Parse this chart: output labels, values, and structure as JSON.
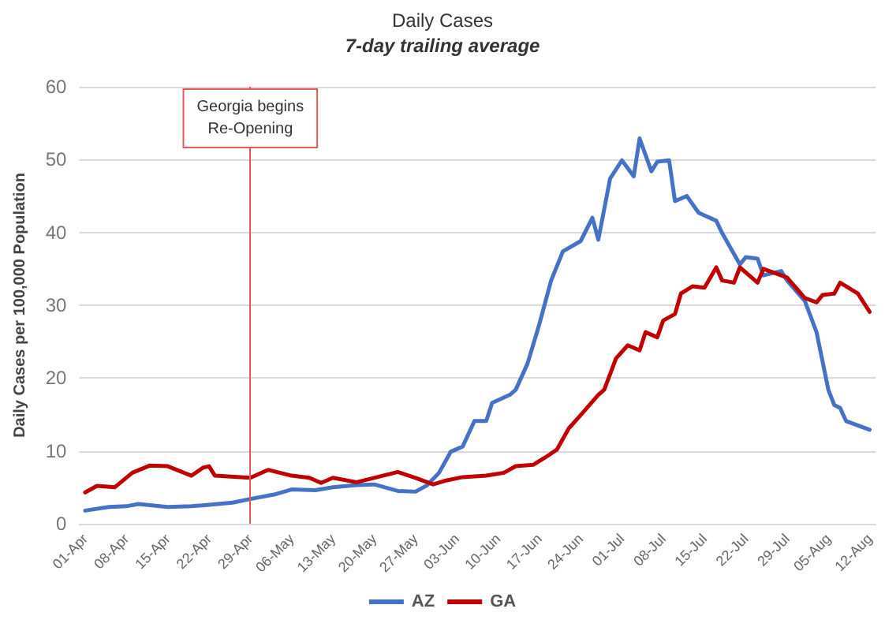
{
  "chart_data": {
    "type": "line",
    "title": "Daily Cases",
    "subtitle": "7-day trailing average",
    "ylabel": "Daily Cases per 100,000 Population",
    "xlim": [
      "--03-31",
      "--08-13"
    ],
    "ylim": [
      0,
      60
    ],
    "yticks": [
      0,
      10,
      20,
      30,
      40,
      50,
      60
    ],
    "xticks": [
      {
        "value": "--04-01",
        "label": "01-Apr"
      },
      {
        "value": "--04-08",
        "label": "08-Apr"
      },
      {
        "value": "--04-15",
        "label": "15-Apr"
      },
      {
        "value": "--04-22",
        "label": "22-Apr"
      },
      {
        "value": "--04-29",
        "label": "29-Apr"
      },
      {
        "value": "--05-06",
        "label": "06-May"
      },
      {
        "value": "--05-13",
        "label": "13-May"
      },
      {
        "value": "--05-20",
        "label": "20-May"
      },
      {
        "value": "--05-27",
        "label": "27-May"
      },
      {
        "value": "--06-03",
        "label": "03-Jun"
      },
      {
        "value": "--06-10",
        "label": "10-Jun"
      },
      {
        "value": "--06-17",
        "label": "17-Jun"
      },
      {
        "value": "--06-24",
        "label": "24-Jun"
      },
      {
        "value": "--07-01",
        "label": "01-Jul"
      },
      {
        "value": "--07-08",
        "label": "08-Jul"
      },
      {
        "value": "--07-15",
        "label": "15-Jul"
      },
      {
        "value": "--07-22",
        "label": "22-Jul"
      },
      {
        "value": "--07-29",
        "label": "29-Jul"
      },
      {
        "value": "--08-05",
        "label": "05-Aug"
      },
      {
        "value": "--08-12",
        "label": "12-Aug"
      }
    ],
    "grid": "y",
    "legend": "bottom",
    "marker": "none",
    "line_style": "solid",
    "ref_lines": [
      {
        "axis": "x",
        "value": "--04-29",
        "label": "Georgia begins\nRe-Opening",
        "color": "#e05a5a"
      }
    ],
    "series": [
      {
        "name": "AZ",
        "color": "#4472c4",
        "x": [
          "--04-01",
          "--04-05",
          "--04-08",
          "--04-10",
          "--04-15",
          "--04-19",
          "--04-22",
          "--04-26",
          "--04-29",
          "--05-03",
          "--05-06",
          "--05-10",
          "--05-13",
          "--05-17",
          "--05-20",
          "--05-24",
          "--05-27",
          "--05-29",
          "--05-31",
          "--06-02",
          "--06-04",
          "--06-06",
          "--06-08",
          "--06-09",
          "--06-12",
          "--06-13",
          "--06-15",
          "--06-17",
          "--06-19",
          "--06-21",
          "--06-24",
          "--06-26",
          "--06-27",
          "--06-29",
          "--07-01",
          "--07-03",
          "--07-04",
          "--07-06",
          "--07-07",
          "--07-09",
          "--07-10",
          "--07-12",
          "--07-14",
          "--07-17",
          "--07-18",
          "--07-21",
          "--07-22",
          "--07-24",
          "--07-25",
          "--07-28",
          "--07-29",
          "--08-01",
          "--08-03",
          "--08-05",
          "--08-06",
          "--08-07",
          "--08-08",
          "--08-12"
        ],
        "values": [
          1.8,
          2.3,
          2.4,
          2.7,
          2.3,
          2.4,
          2.6,
          2.9,
          3.4,
          4.0,
          4.7,
          4.6,
          5.0,
          5.3,
          5.4,
          4.5,
          4.4,
          5.3,
          7.0,
          9.9,
          10.6,
          14.1,
          14.1,
          16.6,
          17.7,
          18.4,
          22.0,
          27.4,
          33.4,
          37.4,
          38.8,
          42.0,
          39.0,
          47.4,
          49.9,
          47.7,
          52.9,
          48.4,
          49.7,
          49.9,
          44.3,
          45.0,
          42.7,
          41.6,
          39.9,
          35.6,
          36.6,
          36.4,
          34.1,
          34.7,
          33.4,
          30.6,
          26.3,
          18.4,
          16.3,
          15.9,
          14.1,
          12.9
        ]
      },
      {
        "name": "GA",
        "color": "#c00000",
        "x": [
          "--04-01",
          "--04-03",
          "--04-06",
          "--04-09",
          "--04-12",
          "--04-15",
          "--04-19",
          "--04-21",
          "--04-22",
          "--04-23",
          "--04-29",
          "--05-02",
          "--05-06",
          "--05-09",
          "--05-11",
          "--05-13",
          "--05-17",
          "--05-20",
          "--05-24",
          "--05-27",
          "--05-30",
          "--06-01",
          "--06-04",
          "--06-08",
          "--06-11",
          "--06-13",
          "--06-16",
          "--06-18",
          "--06-20",
          "--06-22",
          "--06-24",
          "--06-27",
          "--06-28",
          "--06-30",
          "--07-02",
          "--07-04",
          "--07-05",
          "--07-07",
          "--07-08",
          "--07-10",
          "--07-11",
          "--07-13",
          "--07-15",
          "--07-17",
          "--07-18",
          "--07-20",
          "--07-21",
          "--07-24",
          "--07-25",
          "--07-28",
          "--07-29",
          "--08-01",
          "--08-03",
          "--08-04",
          "--08-06",
          "--08-07",
          "--08-10",
          "--08-12"
        ],
        "values": [
          4.3,
          5.2,
          5.0,
          7.0,
          8.0,
          7.9,
          6.6,
          7.7,
          7.9,
          6.6,
          6.3,
          7.4,
          6.6,
          6.3,
          5.6,
          6.3,
          5.7,
          6.3,
          7.1,
          6.3,
          5.4,
          5.9,
          6.4,
          6.6,
          7.0,
          7.9,
          8.1,
          9.1,
          10.2,
          13.1,
          14.9,
          17.7,
          18.4,
          22.7,
          24.5,
          23.8,
          26.3,
          25.6,
          27.9,
          28.8,
          31.6,
          32.6,
          32.4,
          35.2,
          33.4,
          33.1,
          35.2,
          33.1,
          35.0,
          34.1,
          33.8,
          31.0,
          30.4,
          31.4,
          31.6,
          33.1,
          31.6,
          29.1
        ]
      }
    ]
  }
}
